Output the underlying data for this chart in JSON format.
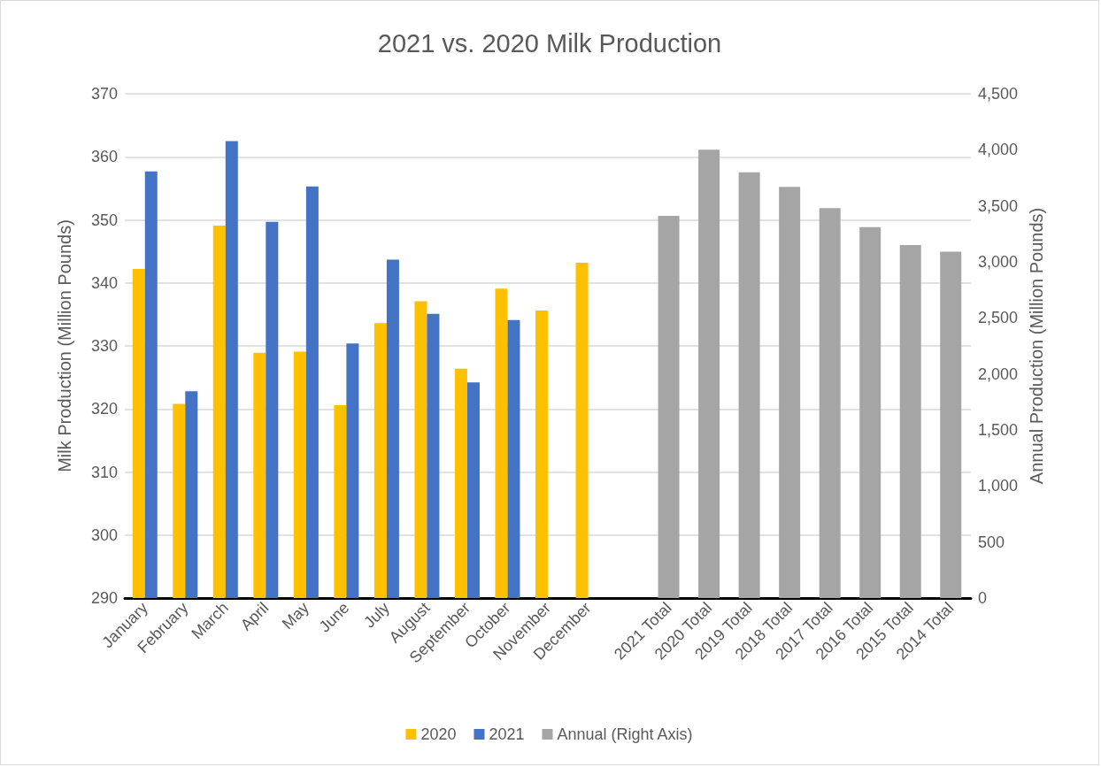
{
  "chart_data": {
    "type": "bar",
    "title": "2021 vs. 2020 Milk Production",
    "ylabel": "Milk Production (Million Pounds)",
    "y2label": "Annual Production (Million Pounds)",
    "categories": [
      "January",
      "February",
      "March",
      "April",
      "May",
      "June",
      "July",
      "August",
      "September",
      "October",
      "November",
      "December",
      null,
      "2021 Total",
      "2020 Total",
      "2019 Total",
      "2018 Total",
      "2017 Total",
      "2016 Total",
      "2015 Total",
      "2014 Total"
    ],
    "series": [
      {
        "name": "2020",
        "color": "#ffc000",
        "values": [
          342.2,
          320.8,
          349.1,
          328.9,
          329.1,
          320.6,
          333.6,
          337.1,
          326.4,
          339.1,
          335.6,
          343.2,
          null,
          null,
          null,
          null,
          null,
          null,
          null,
          null,
          null
        ]
      },
      {
        "name": "2021",
        "color": "#4472c4",
        "values": [
          357.7,
          322.8,
          362.5,
          349.7,
          355.3,
          330.4,
          343.7,
          335.1,
          324.2,
          334.1,
          null,
          null,
          null,
          null,
          null,
          null,
          null,
          null,
          null,
          null,
          null
        ]
      },
      {
        "name": "Annual (Right Axis)",
        "color": "#a5a5a5",
        "axis": "y2",
        "values": [
          null,
          null,
          null,
          null,
          null,
          null,
          null,
          null,
          null,
          null,
          null,
          null,
          null,
          3410,
          4000,
          3800,
          3670,
          3480,
          3310,
          3150,
          3090
        ]
      }
    ],
    "ylim": [
      290,
      370
    ],
    "yticks": [
      290,
      300,
      310,
      320,
      330,
      340,
      350,
      360,
      370
    ],
    "y2lim": [
      0,
      4500
    ],
    "y2ticks": [
      0,
      500,
      {
        "value": 1000,
        "label": "1,000"
      },
      {
        "value": 1500,
        "label": "1,500"
      },
      {
        "value": 2000,
        "label": "2,000"
      },
      {
        "value": 2500,
        "label": "2,500"
      },
      {
        "value": 3000,
        "label": "3,000"
      },
      {
        "value": 3500,
        "label": "3,500"
      },
      {
        "value": 4000,
        "label": "4,000"
      },
      {
        "value": 4500,
        "label": "4,500"
      }
    ],
    "grid": "y",
    "legend": "bottom"
  }
}
